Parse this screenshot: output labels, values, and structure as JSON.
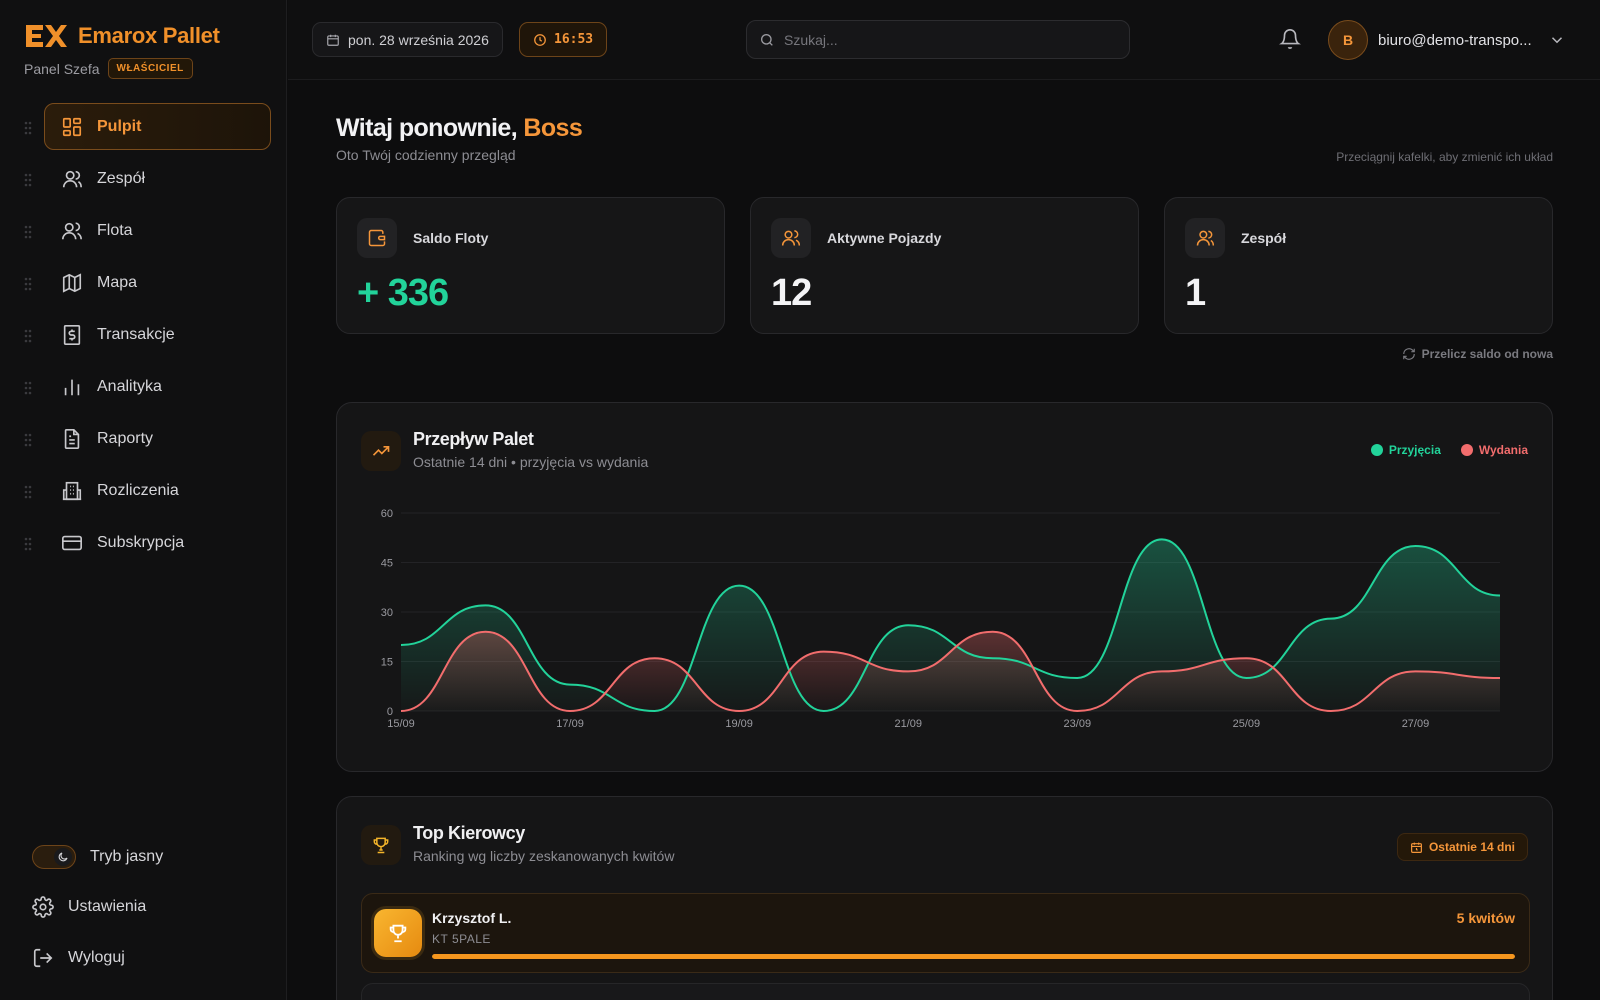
{
  "brand": {
    "name": "Emarox Pallet",
    "logo_text": "EX",
    "role_label": "Panel Szefa",
    "role_badge": "WŁAŚCICIEL"
  },
  "colors": {
    "accent": "#f5963a",
    "positive": "#22d39a",
    "negative": "#f26d6d",
    "background": "#0d0d0e"
  },
  "sidebar": {
    "items": [
      {
        "label": "Pulpit",
        "icon": "dashboard-icon",
        "active": true
      },
      {
        "label": "Zespół",
        "icon": "user-icon"
      },
      {
        "label": "Flota",
        "icon": "users-icon"
      },
      {
        "label": "Mapa",
        "icon": "map-icon"
      },
      {
        "label": "Transakcje",
        "icon": "dollar-receipt-icon"
      },
      {
        "label": "Analityka",
        "icon": "bar-chart-icon"
      },
      {
        "label": "Raporty",
        "icon": "document-icon"
      },
      {
        "label": "Rozliczenia",
        "icon": "building-icon"
      },
      {
        "label": "Subskrypcja",
        "icon": "credit-card-icon"
      }
    ],
    "theme_label": "Tryb jasny",
    "settings_label": "Ustawienia",
    "logout_label": "Wyloguj"
  },
  "topbar": {
    "date": "pon. 28 września 2026",
    "time": "16:53",
    "search_placeholder": "Szukaj...",
    "avatar_initial": "B",
    "user_email": "biuro@demo-transpo..."
  },
  "main": {
    "greeting": "Witaj ponownie,",
    "greeting_name": "Boss",
    "subtitle": "Oto Twój codzienny przegląd",
    "drag_hint": "Przeciągnij kafelki, aby zmienić ich układ",
    "stats": [
      {
        "title": "Saldo Floty",
        "value": "+ 336",
        "icon": "wallet-icon"
      },
      {
        "title": "Aktywne Pojazdy",
        "value": "12",
        "icon": "users-icon"
      },
      {
        "title": "Zespół",
        "value": "1",
        "icon": "user-icon"
      }
    ],
    "recalc_label": "Przelicz saldo od nowa"
  },
  "flow": {
    "title": "Przepływ Palet",
    "subtitle": "Ostatnie 14 dni • przyjęcia vs wydania"
  },
  "chart_data": {
    "type": "area",
    "x": [
      "15/09",
      "16/09",
      "17/09",
      "18/09",
      "19/09",
      "20/09",
      "21/09",
      "22/09",
      "23/09",
      "24/09",
      "25/09",
      "26/09",
      "27/09",
      "28/09"
    ],
    "x_tick_labels": [
      "15/09",
      "17/09",
      "19/09",
      "21/09",
      "23/09",
      "25/09",
      "27/09"
    ],
    "series": [
      {
        "name": "Przyjęcia",
        "color": "#22d39a",
        "values": [
          20,
          32,
          8,
          0,
          38,
          0,
          26,
          16,
          10,
          52,
          10,
          28,
          50,
          35
        ]
      },
      {
        "name": "Wydania",
        "color": "#f26d6d",
        "values": [
          0,
          24,
          0,
          16,
          0,
          18,
          12,
          24,
          0,
          12,
          16,
          0,
          12,
          10
        ]
      }
    ],
    "ylim": [
      0,
      60
    ],
    "y_ticks": [
      0,
      15,
      30,
      45,
      60
    ],
    "legend": "top-right",
    "grid": true
  },
  "drivers": {
    "title": "Top Kierowcy",
    "subtitle": "Ranking wg liczby zeskanowanych kwitów",
    "range_label": "Ostatnie 14 dni",
    "items": [
      {
        "name": "Krzysztof L.",
        "plate": "KT 5PALE",
        "count_label": "5 kwitów",
        "progress": 1.0
      }
    ]
  }
}
